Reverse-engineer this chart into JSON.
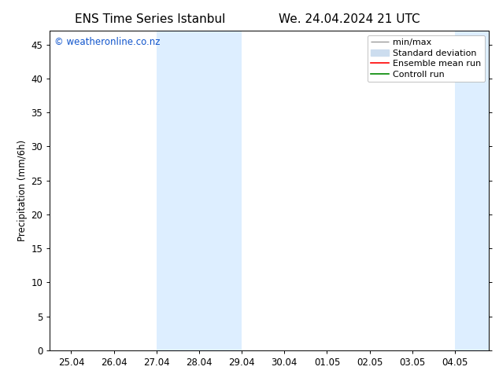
{
  "title_left": "ENS Time Series Istanbul",
  "title_right": "We. 24.04.2024 21 UTC",
  "ylabel": "Precipitation (mm/6h)",
  "watermark": "© weatheronline.co.nz",
  "x_tick_labels": [
    "25.04",
    "26.04",
    "27.04",
    "28.04",
    "29.04",
    "30.04",
    "01.05",
    "02.05",
    "03.05",
    "04.05"
  ],
  "x_tick_positions": [
    0,
    1,
    2,
    3,
    4,
    5,
    6,
    7,
    8,
    9
  ],
  "xlim_min": -0.5,
  "xlim_max": 9.8,
  "ylim_min": 0,
  "ylim_max": 47,
  "yticks": [
    0,
    5,
    10,
    15,
    20,
    25,
    30,
    35,
    40,
    45
  ],
  "shaded_regions": [
    {
      "x_start": 2.0,
      "x_end": 4.0
    },
    {
      "x_start": 9.0,
      "x_end": 9.8
    }
  ],
  "shaded_color": "#ddeeff",
  "background_color": "#ffffff",
  "title_fontsize": 11,
  "tick_fontsize": 8.5,
  "ylabel_fontsize": 8.5,
  "watermark_color": "#1155cc",
  "watermark_fontsize": 8.5,
  "legend_fontsize": 8,
  "minmax_color": "#999999",
  "std_color": "#ccddef",
  "ens_color": "#ff0000",
  "ctrl_color": "#008800"
}
